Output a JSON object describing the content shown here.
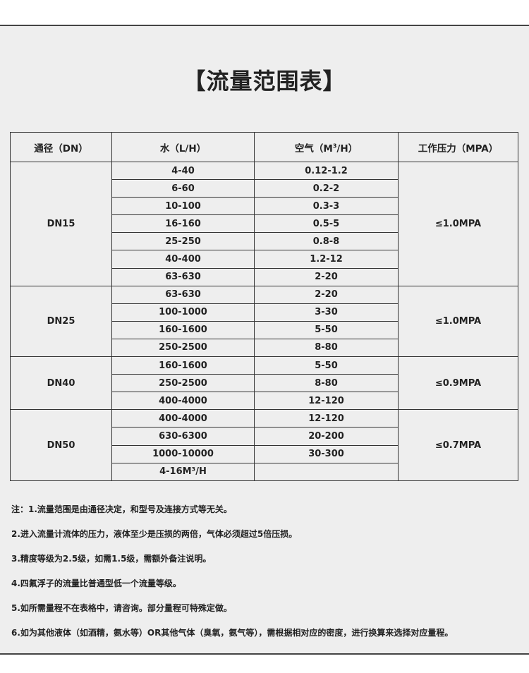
{
  "title": "【流量范围表】",
  "headers": {
    "dn": "通径（DN）",
    "water": "水（L/H）",
    "air_prefix": "空气（M",
    "air_sup": "3",
    "air_suffix": "/H）",
    "pressure": "工作压力（MPA）"
  },
  "groups": [
    {
      "dn": "DN15",
      "pressure": "≤1.0MPA",
      "rows": [
        [
          "4-40",
          "0.12-1.2"
        ],
        [
          "6-60",
          "0.2-2"
        ],
        [
          "10-100",
          "0.3-3"
        ],
        [
          "16-160",
          "0.5-5"
        ],
        [
          "25-250",
          "0.8-8"
        ],
        [
          "40-400",
          "1.2-12"
        ],
        [
          "63-630",
          "2-20"
        ]
      ]
    },
    {
      "dn": "DN25",
      "pressure": "≤1.0MPA",
      "rows": [
        [
          "63-630",
          "2-20"
        ],
        [
          "100-1000",
          "3-30"
        ],
        [
          "160-1600",
          "5-50"
        ],
        [
          "250-2500",
          "8-80"
        ]
      ]
    },
    {
      "dn": "DN40",
      "pressure": "≤0.9MPA",
      "rows": [
        [
          "160-1600",
          "5-50"
        ],
        [
          "250-2500",
          "8-80"
        ],
        [
          "400-4000",
          "12-120"
        ]
      ]
    },
    {
      "dn": "DN50",
      "pressure": "≤0.7MPA",
      "rows": [
        [
          "400-4000",
          "12-120"
        ],
        [
          "630-6300",
          "20-200"
        ],
        [
          "1000-10000",
          "30-300"
        ],
        [
          "4-16M³/H",
          ""
        ]
      ]
    }
  ],
  "notes": [
    "注：1.流量范围是由通径决定，和型号及连接方式等无关。",
    "2.进入流量计流体的压力，液体至少是压损的两倍，气体必须超过5倍压损。",
    "3.精度等级为2.5级，如需1.5级，需额外备注说明。",
    "4.四氟浮子的流量比普通型低一个流量等级。",
    "5.如所需量程不在表格中，请咨询。部分量程可特殊定做。",
    "6.如为其他液体（如酒精，氨水等）OR其他气体（臭氧，氨气等），需根据相对应的密度，进行换算来选择对应量程。"
  ]
}
